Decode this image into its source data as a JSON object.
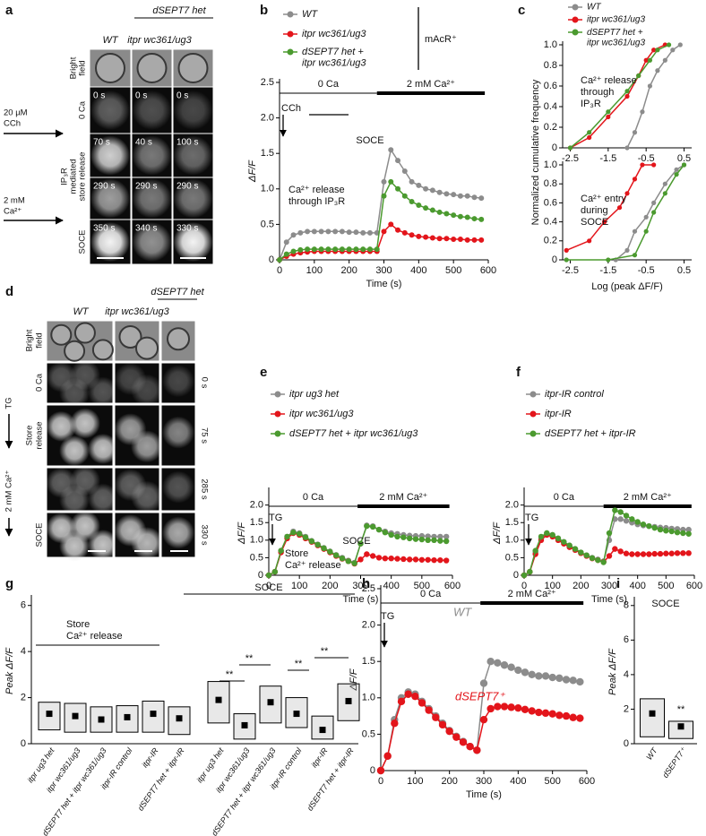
{
  "panel_labels": [
    "a",
    "b",
    "c",
    "d",
    "e",
    "f",
    "g",
    "h",
    "i"
  ],
  "a": {
    "group_label": "dSEPT7 het",
    "columns": [
      "WT",
      "itpr wc361/ug3"
    ],
    "row_labels": [
      [
        "Bright",
        "field"
      ],
      [
        "0 Ca"
      ],
      [
        "IP₃R",
        "mediated",
        "store release"
      ],
      [
        "SOCE"
      ]
    ],
    "side_labels": [
      [
        "20 µM",
        "CCh"
      ],
      [
        "2 mM",
        "Ca²⁺"
      ]
    ],
    "times": [
      [
        "0 s",
        "0 s",
        "0 s"
      ],
      [
        "70 s",
        "40 s",
        "100 s"
      ],
      [
        "290 s",
        "290 s",
        "290 s"
      ],
      [
        "350 s",
        "340 s",
        "330 s"
      ]
    ]
  },
  "b": {
    "type": "line",
    "xlabel": "Time (s)",
    "ylabel": "ΔF/F",
    "x": [
      0,
      20,
      40,
      60,
      80,
      100,
      120,
      140,
      160,
      180,
      200,
      220,
      240,
      260,
      280,
      300,
      320,
      340,
      360,
      380,
      400,
      420,
      440,
      460,
      480,
      500,
      520,
      540,
      560,
      580
    ],
    "xlim": [
      0,
      600
    ],
    "xticks": [
      0,
      100,
      200,
      300,
      400,
      500,
      600
    ],
    "ylim": [
      0,
      2.5
    ],
    "yticks": [
      0,
      0.5,
      {
        "value": 1,
        "label": "1.0"
      },
      1.5,
      {
        "value": 2,
        "label": "2.0"
      },
      2.5
    ],
    "series": [
      {
        "name": "WT",
        "color": "#8c8c8c",
        "values": [
          0,
          0.25,
          0.35,
          0.38,
          0.4,
          0.4,
          0.4,
          0.4,
          0.4,
          0.4,
          0.39,
          0.39,
          0.38,
          0.38,
          0.38,
          1.1,
          1.55,
          1.4,
          1.25,
          1.1,
          1.05,
          1.0,
          0.98,
          0.95,
          0.93,
          0.92,
          0.9,
          0.9,
          0.88,
          0.87
        ]
      },
      {
        "name": "itpr wc361/ug3",
        "color": "#e3151b",
        "values": [
          0,
          0.05,
          0.08,
          0.1,
          0.11,
          0.12,
          0.12,
          0.12,
          0.12,
          0.12,
          0.12,
          0.12,
          0.12,
          0.12,
          0.12,
          0.4,
          0.5,
          0.42,
          0.38,
          0.35,
          0.33,
          0.32,
          0.31,
          0.3,
          0.3,
          0.29,
          0.29,
          0.28,
          0.28,
          0.28
        ]
      },
      {
        "name": "dSEPT7 het + itpr wc361/ug3",
        "color": "#4b9a2f",
        "values": [
          0,
          0.08,
          0.12,
          0.14,
          0.15,
          0.15,
          0.15,
          0.15,
          0.15,
          0.15,
          0.15,
          0.15,
          0.15,
          0.15,
          0.15,
          0.9,
          1.1,
          1.0,
          0.9,
          0.82,
          0.77,
          0.73,
          0.7,
          0.67,
          0.65,
          0.63,
          0.61,
          0.6,
          0.58,
          0.57
        ]
      }
    ],
    "phases": [
      {
        "label": "0 Ca",
        "range": [
          0,
          280
        ]
      },
      {
        "label": "2 mM Ca²⁺",
        "range": [
          280,
          590
        ]
      }
    ],
    "annotations": [
      "mAcR⁺",
      "CCh",
      "SOCE",
      "Ca²⁺ release",
      "through IP₃R"
    ]
  },
  "c": {
    "ylabel": "Normalized cumulative frequency",
    "xlabel": "Log (peak ΔF/F)",
    "charts": [
      {
        "type": "line",
        "xlim": [
          -2.7,
          0.7
        ],
        "xticks": [
          -2.5,
          -1.5,
          -0.5,
          0.5
        ],
        "ylim": [
          0,
          1
        ],
        "yticks": [
          0,
          0.2,
          0.4,
          0.6,
          0.8,
          {
            "value": 1,
            "label": "1.0"
          }
        ],
        "series": [
          {
            "name": "WT",
            "color": "#8c8c8c",
            "x": [
              -1.0,
              -0.8,
              -0.6,
              -0.4,
              -0.2,
              0,
              0.2,
              0.4
            ],
            "values": [
              0,
              0.15,
              0.35,
              0.6,
              0.75,
              0.85,
              0.95,
              1
            ]
          },
          {
            "name": "itpr wc361/ug3",
            "color": "#e3151b",
            "x": [
              -2.5,
              -2.0,
              -1.5,
              -1.0,
              -0.7,
              -0.5,
              -0.3,
              0
            ],
            "values": [
              0,
              0.1,
              0.3,
              0.5,
              0.7,
              0.85,
              0.95,
              1
            ]
          },
          {
            "name": "dSEPT7 het + itpr wc361/ug3",
            "color": "#4b9a2f",
            "x": [
              -2.5,
              -2.0,
              -1.5,
              -1.0,
              -0.7,
              -0.4,
              -0.2,
              0.1
            ],
            "values": [
              0,
              0.15,
              0.35,
              0.55,
              0.7,
              0.85,
              0.95,
              1
            ]
          }
        ],
        "annotations": [
          "Ca²⁺ release",
          "through",
          "IP₃R"
        ]
      },
      {
        "type": "line",
        "xlim": [
          -2.7,
          0.7
        ],
        "xticks": [
          -2.5,
          -1.5,
          -0.5,
          0.5
        ],
        "ylim": [
          0,
          1
        ],
        "yticks": [
          0,
          0.2,
          0.4,
          0.6,
          0.8,
          {
            "value": 1,
            "label": "1.0"
          }
        ],
        "series": [
          {
            "color": "#8c8c8c",
            "x": [
              -1.3,
              -1.0,
              -0.8,
              -0.5,
              -0.3,
              0,
              0.3,
              0.5
            ],
            "values": [
              0,
              0.1,
              0.3,
              0.45,
              0.6,
              0.8,
              0.95,
              1
            ]
          },
          {
            "color": "#e3151b",
            "x": [
              -2.6,
              -2.0,
              -1.6,
              -1.2,
              -1.0,
              -0.8,
              -0.6,
              -0.3
            ],
            "values": [
              0.1,
              0.2,
              0.4,
              0.55,
              0.7,
              0.85,
              1,
              1
            ]
          },
          {
            "color": "#4b9a2f",
            "x": [
              -2.6,
              -1.5,
              -0.8,
              -0.5,
              -0.3,
              0,
              0.3,
              0.5
            ],
            "values": [
              0,
              0,
              0.05,
              0.3,
              0.5,
              0.7,
              0.9,
              1
            ]
          }
        ],
        "annotations": [
          "Ca²⁺ entry",
          "during",
          "SOCE"
        ]
      }
    ]
  },
  "d": {
    "group_label": "dSEPT7 het",
    "columns": [
      "WT",
      "itpr wc361/ug3"
    ],
    "row_labels": [
      [
        "Bright",
        "field"
      ],
      [
        "0 Ca"
      ],
      [
        "Store",
        "release"
      ],
      [
        "SOCE"
      ]
    ],
    "side_labels": [
      "TG",
      "2 mM Ca²⁺"
    ],
    "times": [
      "0 s",
      "75 s",
      "285 s",
      "330 s"
    ]
  },
  "e": {
    "type": "line",
    "xlabel": "Time (s)",
    "ylabel": "ΔF/F",
    "x": [
      0,
      20,
      40,
      60,
      80,
      100,
      120,
      140,
      160,
      180,
      200,
      220,
      240,
      260,
      280,
      300,
      320,
      340,
      360,
      380,
      400,
      420,
      440,
      460,
      480,
      500,
      520,
      540,
      560,
      580
    ],
    "xlim": [
      0,
      600
    ],
    "xticks": [
      0,
      100,
      200,
      300,
      400,
      500,
      600
    ],
    "ylim": [
      0,
      2.4
    ],
    "yticks": [
      0,
      0.5,
      {
        "value": 1,
        "label": "1.0"
      },
      1.5,
      {
        "value": 2,
        "label": "2.0"
      }
    ],
    "series": [
      {
        "name": "itpr ug3 het",
        "color": "#8c8c8c",
        "values": [
          0,
          0.1,
          0.7,
          1.1,
          1.25,
          1.2,
          1.1,
          0.98,
          0.88,
          0.78,
          0.68,
          0.58,
          0.5,
          0.42,
          0.36,
          0.9,
          1.42,
          1.4,
          1.3,
          1.25,
          1.2,
          1.18,
          1.15,
          1.13,
          1.12,
          1.12,
          1.11,
          1.1,
          1.1,
          1.1
        ]
      },
      {
        "name": "itpr wc361/ug3",
        "color": "#e3151b",
        "values": [
          0,
          0.1,
          0.65,
          1.05,
          1.2,
          1.15,
          1.05,
          0.95,
          0.85,
          0.75,
          0.65,
          0.55,
          0.47,
          0.4,
          0.33,
          0.45,
          0.6,
          0.55,
          0.5,
          0.48,
          0.48,
          0.47,
          0.46,
          0.45,
          0.45,
          0.44,
          0.44,
          0.43,
          0.43,
          0.42
        ]
      },
      {
        "name": "dSEPT7 het + itpr wc361/ug3",
        "color": "#4b9a2f",
        "values": [
          0,
          0.1,
          0.7,
          1.1,
          1.22,
          1.18,
          1.08,
          0.97,
          0.87,
          0.77,
          0.67,
          0.57,
          0.48,
          0.4,
          0.34,
          0.9,
          1.4,
          1.38,
          1.3,
          1.22,
          1.15,
          1.1,
          1.08,
          1.05,
          1.03,
          1.02,
          1.0,
          1.0,
          0.98,
          0.97
        ]
      }
    ],
    "phases": [
      {
        "label": "0 Ca",
        "range": [
          0,
          290
        ]
      },
      {
        "label": "2 mM Ca²⁺",
        "range": [
          290,
          590
        ]
      }
    ],
    "annotations": [
      "TG",
      "SOCE",
      "Store",
      "Ca²⁺ release"
    ]
  },
  "f": {
    "type": "line",
    "xlabel": "Time (s)",
    "ylabel": "ΔF/F",
    "x": [
      0,
      20,
      40,
      60,
      80,
      100,
      120,
      140,
      160,
      180,
      200,
      220,
      240,
      260,
      280,
      300,
      320,
      340,
      360,
      380,
      400,
      420,
      440,
      460,
      480,
      500,
      520,
      540,
      560,
      580
    ],
    "xlim": [
      0,
      600
    ],
    "xticks": [
      0,
      100,
      200,
      300,
      400,
      500,
      600
    ],
    "ylim": [
      0,
      2.4
    ],
    "yticks": [
      0,
      0.5,
      {
        "value": 1,
        "label": "1.0"
      },
      1.5,
      {
        "value": 2,
        "label": "2.0"
      }
    ],
    "series": [
      {
        "name": "itpr-IR control",
        "color": "#8c8c8c",
        "values": [
          0,
          0.1,
          0.65,
          1.05,
          1.2,
          1.15,
          1.05,
          0.95,
          0.85,
          0.75,
          0.65,
          0.57,
          0.5,
          0.45,
          0.4,
          1.0,
          1.6,
          1.6,
          1.55,
          1.5,
          1.45,
          1.42,
          1.4,
          1.38,
          1.36,
          1.35,
          1.33,
          1.32,
          1.3,
          1.3
        ]
      },
      {
        "name": "itpr-IR",
        "color": "#e3151b",
        "values": [
          0,
          0.1,
          0.6,
          1.0,
          1.15,
          1.1,
          1.0,
          0.9,
          0.8,
          0.72,
          0.63,
          0.55,
          0.48,
          0.43,
          0.38,
          0.55,
          0.75,
          0.68,
          0.62,
          0.6,
          0.6,
          0.6,
          0.6,
          0.61,
          0.61,
          0.62,
          0.62,
          0.63,
          0.63,
          0.63
        ]
      },
      {
        "name": "dSEPT7 het + itpr-IR",
        "color": "#4b9a2f",
        "values": [
          0,
          0.1,
          0.7,
          1.1,
          1.2,
          1.15,
          1.05,
          0.95,
          0.85,
          0.75,
          0.65,
          0.57,
          0.49,
          0.43,
          0.37,
          1.2,
          1.85,
          1.8,
          1.7,
          1.6,
          1.52,
          1.45,
          1.4,
          1.35,
          1.3,
          1.27,
          1.25,
          1.22,
          1.2,
          1.18
        ]
      }
    ],
    "phases": [
      {
        "label": "0 Ca",
        "range": [
          0,
          280
        ]
      },
      {
        "label": "2 mM Ca²⁺",
        "range": [
          280,
          590
        ]
      }
    ],
    "annotations": [
      "TG"
    ]
  },
  "g": {
    "type": "box",
    "ylabel": "Peak ΔF/F",
    "ylim": [
      0,
      6.3
    ],
    "yticks": [
      0,
      2,
      4,
      6
    ],
    "categories": [
      "itpr ug3 het",
      "itpr wc361/ug3",
      "dSEPT7 het + itpr wc361/ug3",
      "itpr-IR control",
      "itpr-IR",
      "dSEPT7 het + itpr-IR",
      "itpr ug3 het",
      "itpr wc361/ug3",
      "dSEPT7 het + itpr wc361/ug3",
      "itpr-IR control",
      "itpr-IR",
      "dSEPT7 het + itpr-IR"
    ],
    "boxes": [
      [
        0.6,
        1.8
      ],
      [
        0.5,
        1.75
      ],
      [
        0.5,
        1.6
      ],
      [
        0.5,
        1.65
      ],
      [
        0.5,
        1.85
      ],
      [
        0.4,
        1.6
      ],
      [
        0.9,
        2.7
      ],
      [
        0.2,
        1.3
      ],
      [
        0.9,
        2.5
      ],
      [
        0.7,
        2.0
      ],
      [
        0.2,
        1.2
      ],
      [
        1.0,
        2.6
      ]
    ],
    "means": [
      1.3,
      1.2,
      1.05,
      1.15,
      1.3,
      1.1,
      1.9,
      0.8,
      1.8,
      1.3,
      0.6,
      1.85
    ],
    "annotations": [
      "Store",
      "Ca²⁺ release",
      "SOCE",
      "**",
      "**",
      "**",
      "**"
    ]
  },
  "h": {
    "type": "line",
    "xlabel": "Time (s)",
    "ylabel": "ΔF/F",
    "x": [
      0,
      20,
      40,
      60,
      80,
      100,
      120,
      140,
      160,
      180,
      200,
      220,
      240,
      260,
      280,
      300,
      320,
      340,
      360,
      380,
      400,
      420,
      440,
      460,
      480,
      500,
      520,
      540,
      560,
      580
    ],
    "xlim": [
      0,
      600
    ],
    "xticks": [
      0,
      100,
      200,
      300,
      400,
      500,
      600
    ],
    "ylim": [
      0,
      2.5
    ],
    "yticks": [
      0,
      0.5,
      {
        "value": 1,
        "label": "1.0"
      },
      1.5,
      {
        "value": 2,
        "label": "2.0"
      },
      2.5
    ],
    "series": [
      {
        "name": "WT",
        "color": "#8c8c8c",
        "values": [
          0,
          0.2,
          0.7,
          1.0,
          1.08,
          1.05,
          0.95,
          0.85,
          0.75,
          0.65,
          0.55,
          0.47,
          0.4,
          0.33,
          0.28,
          1.2,
          1.5,
          1.48,
          1.45,
          1.42,
          1.38,
          1.35,
          1.32,
          1.3,
          1.3,
          1.28,
          1.27,
          1.25,
          1.24,
          1.22
        ]
      },
      {
        "name": "dSEPT7⁺",
        "color": "#e3151b",
        "values": [
          0,
          0.2,
          0.65,
          0.95,
          1.05,
          1.02,
          0.93,
          0.83,
          0.73,
          0.63,
          0.54,
          0.46,
          0.39,
          0.33,
          0.28,
          0.7,
          0.85,
          0.88,
          0.88,
          0.87,
          0.86,
          0.84,
          0.82,
          0.8,
          0.79,
          0.78,
          0.76,
          0.75,
          0.73,
          0.72
        ]
      }
    ],
    "phases": [
      {
        "label": "0 Ca",
        "range": [
          0,
          290
        ]
      },
      {
        "label": "2 mM Ca²⁺",
        "range": [
          290,
          590
        ]
      }
    ],
    "annotations": [
      "TG"
    ]
  },
  "i": {
    "type": "box",
    "title": "SOCE",
    "ylabel": "Peak ΔF/F",
    "ylim": [
      0,
      8.3
    ],
    "yticks": [
      0,
      2,
      4,
      6,
      8
    ],
    "categories": [
      "WT",
      "dSEPT7⁺"
    ],
    "boxes": [
      [
        0.4,
        2.6
      ],
      [
        0.3,
        1.3
      ]
    ],
    "means": [
      1.75,
      1.0
    ],
    "annotations": [
      "**"
    ]
  }
}
